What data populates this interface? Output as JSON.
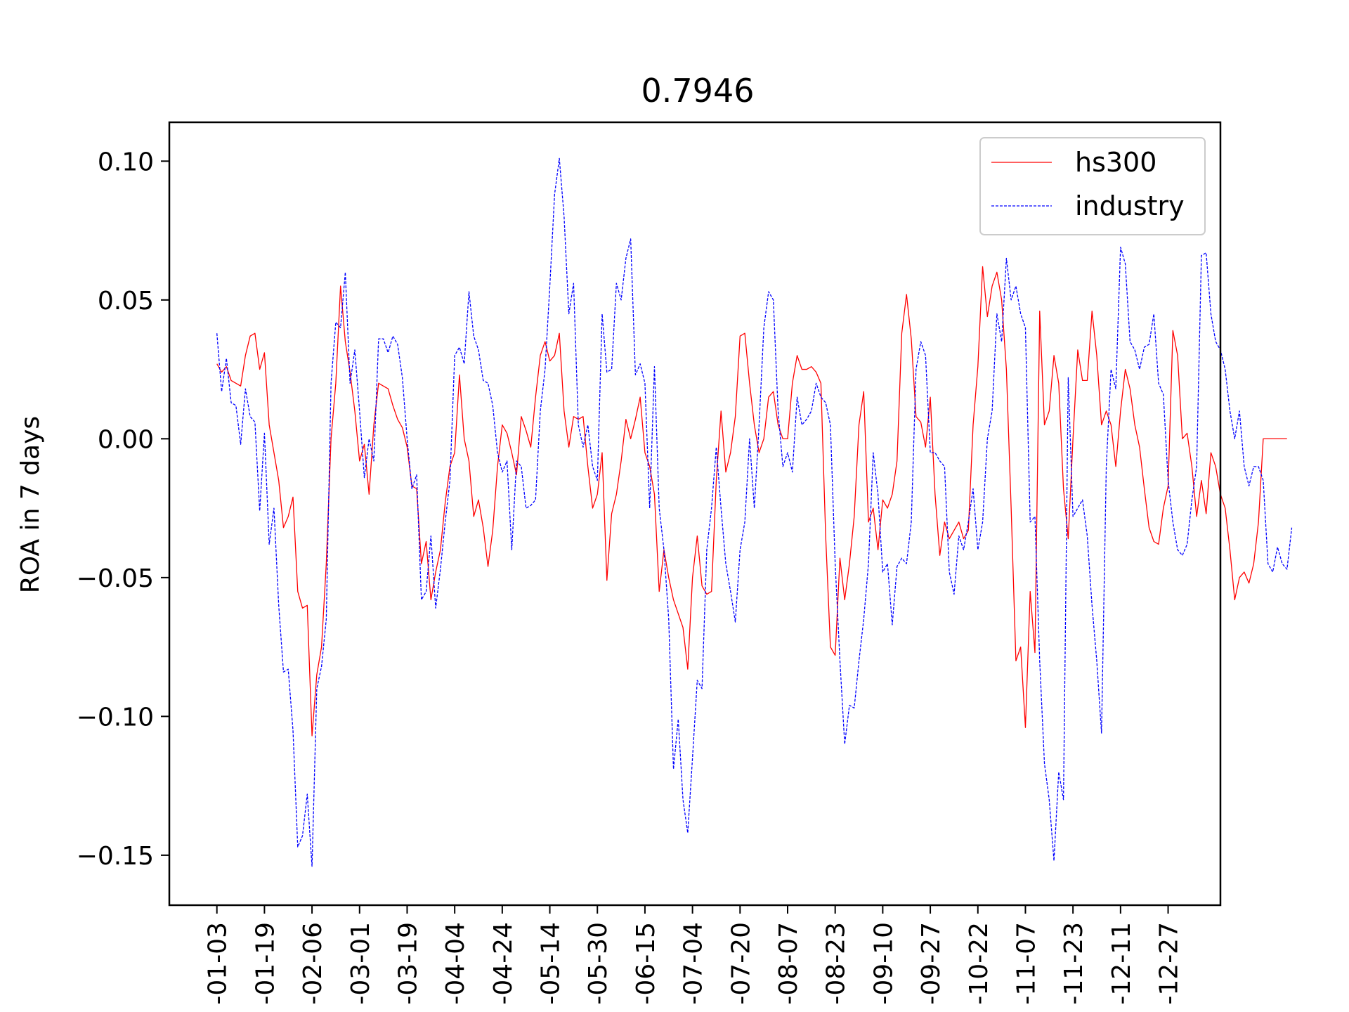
{
  "chart_data": {
    "type": "line",
    "title": "0.7946",
    "xlabel": "",
    "ylabel": "ROA in 7 days",
    "ylim": [
      -0.168,
      0.114
    ],
    "yticks": [
      0.1,
      0.05,
      0.0,
      -0.05,
      -0.1,
      -0.15
    ],
    "ytick_labels": [
      "0.10",
      "0.05",
      "0.00",
      "−0.05",
      "−0.10",
      "−0.15"
    ],
    "xlim": [
      -10,
      211
    ],
    "xticks": [
      0,
      10,
      20,
      30,
      40,
      50,
      60,
      70,
      80,
      90,
      100,
      110,
      120,
      130,
      140,
      150,
      160,
      170,
      180,
      190,
      200
    ],
    "xtick_labels": [
      "-01-03",
      "-01-19",
      "-02-06",
      "-03-01",
      "-03-19",
      "-04-04",
      "-04-24",
      "-05-14",
      "-05-30",
      "-06-15",
      "-07-04",
      "-07-20",
      "-08-07",
      "-08-23",
      "-09-10",
      "-09-27",
      "-10-22",
      "-11-07",
      "-11-23",
      "-12-11",
      "-12-27"
    ],
    "grid": false,
    "legend": "top-right",
    "series": [
      {
        "name": "hs300",
        "color": "#ff0000",
        "style": "solid",
        "values": [
          0.027,
          0.024,
          0.026,
          0.021,
          0.02,
          0.019,
          0.03,
          0.037,
          0.038,
          0.025,
          0.031,
          0.005,
          -0.005,
          -0.015,
          -0.032,
          -0.028,
          -0.021,
          -0.055,
          -0.061,
          -0.06,
          -0.107,
          -0.085,
          -0.075,
          -0.045,
          0.0,
          0.02,
          0.055,
          0.035,
          0.024,
          0.01,
          -0.008,
          -0.002,
          -0.02,
          0.005,
          0.02,
          0.019,
          0.018,
          0.012,
          0.007,
          0.004,
          -0.003,
          -0.017,
          -0.018,
          -0.045,
          -0.037,
          -0.058,
          -0.048,
          -0.04,
          -0.023,
          -0.01,
          -0.005,
          0.023,
          0.0,
          -0.008,
          -0.028,
          -0.022,
          -0.032,
          -0.046,
          -0.033,
          -0.01,
          0.005,
          0.002,
          -0.005,
          -0.013,
          0.008,
          0.003,
          -0.003,
          0.015,
          0.03,
          0.035,
          0.028,
          0.03,
          0.038,
          0.01,
          -0.003,
          0.008,
          0.007,
          0.008,
          -0.01,
          -0.025,
          -0.02,
          -0.005,
          -0.051,
          -0.027,
          -0.02,
          -0.008,
          0.007,
          0.0,
          0.007,
          0.015,
          -0.005,
          -0.01,
          -0.02,
          -0.055,
          -0.04,
          -0.05,
          -0.058,
          -0.063,
          -0.068,
          -0.083,
          -0.05,
          -0.035,
          -0.053,
          -0.056,
          -0.055,
          -0.015,
          0.01,
          -0.012,
          -0.005,
          0.008,
          0.037,
          0.038,
          0.02,
          0.005,
          -0.005,
          0.0,
          0.015,
          0.017,
          0.005,
          0.0,
          0.0,
          0.02,
          0.03,
          0.025,
          0.025,
          0.026,
          0.024,
          0.02,
          -0.035,
          -0.075,
          -0.078,
          -0.043,
          -0.058,
          -0.045,
          -0.028,
          0.005,
          0.017,
          -0.03,
          -0.025,
          -0.04,
          -0.022,
          -0.025,
          -0.02,
          -0.008,
          0.038,
          0.052,
          0.036,
          0.008,
          0.006,
          -0.003,
          0.015,
          -0.02,
          -0.042,
          -0.03,
          -0.036,
          -0.033,
          -0.03,
          -0.036,
          -0.033,
          0.005,
          0.026,
          0.062,
          0.044,
          0.055,
          0.06,
          0.05,
          0.025,
          -0.025,
          -0.08,
          -0.075,
          -0.104,
          -0.055,
          -0.077,
          0.046,
          0.005,
          0.01,
          0.03,
          0.02,
          -0.018,
          -0.036,
          0.0,
          0.032,
          0.021,
          0.021,
          0.046,
          0.03,
          0.005,
          0.01,
          0.005,
          -0.01,
          0.01,
          0.025,
          0.018,
          0.005,
          -0.003,
          -0.018,
          -0.032,
          -0.037,
          -0.038,
          -0.025,
          -0.017,
          0.039,
          0.03,
          0.0,
          0.002,
          -0.01,
          -0.028,
          -0.015,
          -0.027,
          -0.005,
          -0.01,
          -0.02,
          -0.025,
          -0.04,
          -0.058,
          -0.05,
          -0.048,
          -0.052,
          -0.045,
          -0.03,
          0.0,
          0.0,
          0.0,
          0.0,
          0.0,
          0.0
        ]
      },
      {
        "name": "industry",
        "color": "#0000ff",
        "style": "dashed",
        "values": [
          0.038,
          0.017,
          0.029,
          0.013,
          0.012,
          -0.002,
          0.018,
          0.008,
          0.006,
          -0.026,
          0.002,
          -0.038,
          -0.025,
          -0.06,
          -0.084,
          -0.083,
          -0.105,
          -0.147,
          -0.143,
          -0.128,
          -0.154,
          -0.09,
          -0.082,
          -0.065,
          0.02,
          0.042,
          0.04,
          0.06,
          0.02,
          0.032,
          0.01,
          -0.014,
          0.0,
          -0.008,
          0.036,
          0.036,
          0.031,
          0.037,
          0.034,
          0.022,
          0.0,
          -0.018,
          -0.013,
          -0.058,
          -0.055,
          -0.035,
          -0.061,
          -0.047,
          -0.03,
          -0.015,
          0.03,
          0.033,
          0.027,
          0.053,
          0.037,
          0.032,
          0.021,
          0.02,
          0.012,
          -0.005,
          -0.012,
          -0.008,
          -0.04,
          -0.008,
          -0.01,
          -0.025,
          -0.024,
          -0.022,
          0.01,
          0.025,
          0.055,
          0.088,
          0.101,
          0.08,
          0.045,
          0.056,
          0.005,
          -0.003,
          0.005,
          -0.01,
          -0.015,
          0.045,
          0.024,
          0.025,
          0.056,
          0.05,
          0.065,
          0.072,
          0.023,
          0.027,
          0.02,
          -0.025,
          0.026,
          -0.025,
          -0.04,
          -0.065,
          -0.119,
          -0.101,
          -0.13,
          -0.142,
          -0.115,
          -0.087,
          -0.09,
          -0.04,
          -0.025,
          -0.003,
          -0.025,
          -0.045,
          -0.055,
          -0.066,
          -0.04,
          -0.03,
          0.0,
          -0.025,
          0.005,
          0.04,
          0.053,
          0.05,
          0.01,
          -0.01,
          -0.005,
          -0.012,
          0.015,
          0.005,
          0.007,
          0.01,
          0.02,
          0.015,
          0.013,
          0.005,
          -0.045,
          -0.08,
          -0.11,
          -0.096,
          -0.097,
          -0.08,
          -0.065,
          -0.045,
          -0.005,
          -0.02,
          -0.048,
          -0.045,
          -0.067,
          -0.046,
          -0.043,
          -0.045,
          -0.03,
          0.025,
          0.035,
          0.03,
          -0.005,
          -0.005,
          -0.008,
          -0.01,
          -0.048,
          -0.056,
          -0.035,
          -0.04,
          -0.03,
          -0.018,
          -0.04,
          -0.03,
          0.0,
          0.01,
          0.045,
          0.035,
          0.065,
          0.05,
          0.055,
          0.045,
          0.04,
          -0.03,
          -0.028,
          -0.08,
          -0.117,
          -0.13,
          -0.152,
          -0.12,
          -0.13,
          0.022,
          -0.028,
          -0.025,
          -0.022,
          -0.035,
          -0.06,
          -0.08,
          -0.106,
          -0.01,
          0.025,
          0.018,
          0.069,
          0.063,
          0.035,
          0.032,
          0.025,
          0.033,
          0.034,
          0.045,
          0.02,
          0.016,
          -0.015,
          -0.03,
          -0.04,
          -0.042,
          -0.038,
          -0.022,
          -0.01,
          0.066,
          0.067,
          0.045,
          0.035,
          0.032,
          0.025,
          0.01,
          0.0,
          0.01,
          -0.01,
          -0.017,
          -0.01,
          -0.01,
          -0.015,
          -0.045,
          -0.048,
          -0.039,
          -0.045,
          -0.047,
          -0.032
        ]
      }
    ]
  }
}
